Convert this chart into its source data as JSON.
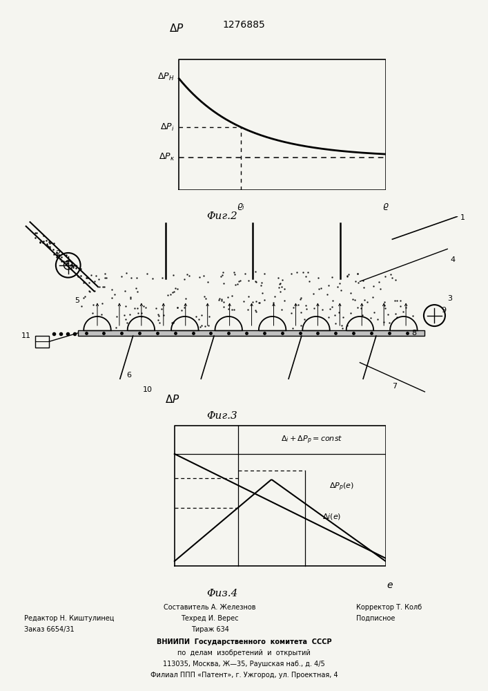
{
  "title": "1276885",
  "fig2_label": "Φиг.2",
  "fig3_label": "Φиг.3",
  "fig4_label": "Φиз.4",
  "footer_line1_left": "Редактор Н. Киштулинец",
  "footer_line2_left": "Заказ 6654/31",
  "footer_line1_center": "Составитель А. Железнов",
  "footer_line2_center": "Техред И. Верес",
  "footer_line3_center": "Тираж 634",
  "footer_line1_right": "Корректор Т. Колб",
  "footer_line2_right": "Подписное",
  "footer_vniiipi": "ВНИИПИ  Государственного  комитета  СССР",
  "footer_po": "по  делам  изобретений  и  открытий",
  "footer_addr1": "113035, Москва, Ж—35, Раушская наб., д. 4/5",
  "footer_addr2": "Филиал ППП «Патент», г. Ужгород, ул. Проектная, 4",
  "paper_color": "#f5f5f0"
}
